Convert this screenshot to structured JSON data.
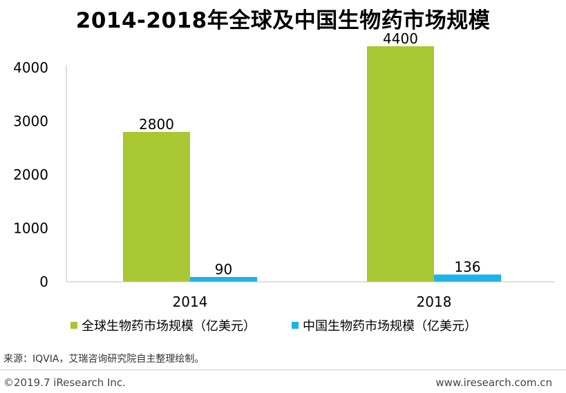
{
  "title": "2014-2018年全球及中国生物药市场规模",
  "source": "来源：IQVIA，艾瑞咨询研究院自主整理绘制。",
  "footer": {
    "copyright": "©2019.7 iResearch Inc.",
    "website": "www.iresearch.com.cn"
  },
  "colors": {
    "global": "#A8C733",
    "china": "#1CB3E6"
  },
  "chart_data": {
    "type": "bar",
    "categories": [
      "2014",
      "2018"
    ],
    "series": [
      {
        "name": "全球生物药市场规模（亿美元）",
        "values": [
          2800,
          4400
        ]
      },
      {
        "name": "中国生物药市场规模（亿美元）",
        "values": [
          90,
          136
        ]
      }
    ],
    "ylim": [
      0,
      4000
    ],
    "yticks": [
      "0",
      "1000",
      "2000",
      "3000",
      "4000"
    ],
    "xlabel": "",
    "ylabel": "",
    "legend": "bottom"
  }
}
